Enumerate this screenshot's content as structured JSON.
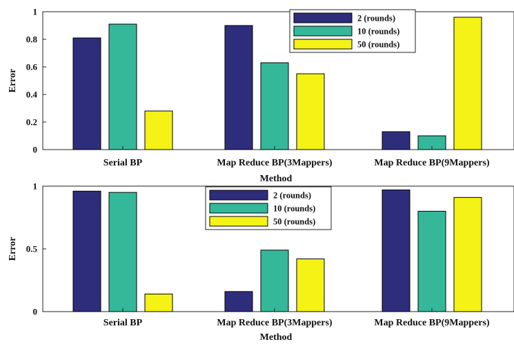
{
  "colors": {
    "2 (rounds)": "#2e2d7c",
    "10 (rounds)": "#35b89a",
    "50 (rounds)": "#f5f215"
  },
  "chart_data": [
    {
      "type": "bar",
      "categories": [
        "Serial BP",
        "Map Reduce BP(3Mappers)",
        "Map Reduce BP(9Mappers)"
      ],
      "series": [
        {
          "name": "2 (rounds)",
          "values": [
            0.81,
            0.9,
            0.13
          ]
        },
        {
          "name": "10 (rounds)",
          "values": [
            0.91,
            0.63,
            0.1
          ]
        },
        {
          "name": "50 (rounds)",
          "values": [
            0.28,
            0.55,
            0.96
          ]
        }
      ],
      "xlabel": "Method",
      "ylabel": "Error",
      "ylim": [
        0,
        1
      ],
      "yticks": [
        0,
        0.2,
        0.4,
        0.6,
        0.8,
        1
      ],
      "ytick_labels": [
        "0",
        "0.2",
        "0.4",
        "0.6",
        "0.8",
        "1"
      ],
      "legend": "top-right",
      "grid": false
    },
    {
      "type": "bar",
      "categories": [
        "Serial BP",
        "Map Reduce BP(3Mappers)",
        "Map Reduce BP(9Mappers)"
      ],
      "series": [
        {
          "name": "2 (rounds)",
          "values": [
            0.96,
            0.16,
            0.97
          ]
        },
        {
          "name": "10 (rounds)",
          "values": [
            0.95,
            0.49,
            0.8
          ]
        },
        {
          "name": "50 (rounds)",
          "values": [
            0.14,
            0.42,
            0.91
          ]
        }
      ],
      "xlabel": "Method",
      "ylabel": "Error",
      "ylim": [
        0,
        1
      ],
      "yticks": [
        0,
        0.5,
        1
      ],
      "ytick_labels": [
        "0",
        "0.5",
        "1"
      ],
      "legend": "top-center",
      "grid": false
    }
  ]
}
